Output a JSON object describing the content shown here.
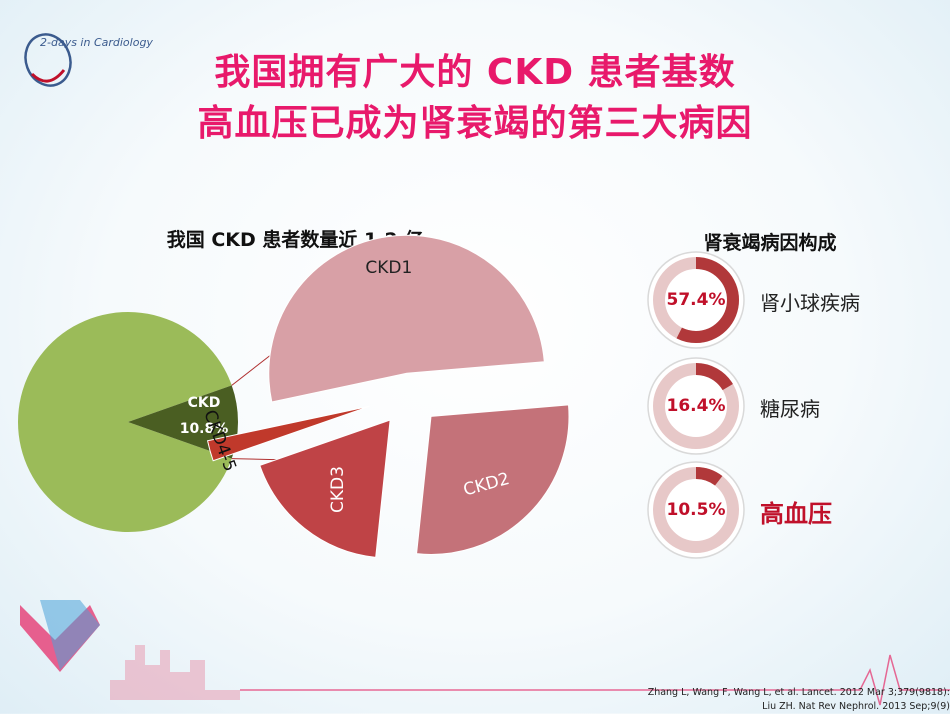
{
  "title_line1": "我国拥有广大的 CKD 患者基数",
  "title_line2": "高血压已成为肾衰竭的第三大病因",
  "logo_text": "2-days in Cardiology",
  "left_chart_title": "我国 CKD 患者数量近 1.2 亿",
  "right_chart_title": "肾衰竭病因构成",
  "colors": {
    "title": "#e8196b",
    "accent": "#c0102a"
  },
  "chart_data": [
    {
      "type": "pie",
      "title": "我国 CKD 患者数量近 1.2 亿",
      "slices": [
        {
          "label": "CKD",
          "value": 10.8,
          "value_label": "10.8%",
          "color": "#4a5e22"
        },
        {
          "label": "",
          "value": 89.2,
          "color": "#9bbb59"
        }
      ]
    },
    {
      "type": "pie",
      "title": "",
      "exploded": true,
      "slices": [
        {
          "label": "CKD1",
          "value": 52,
          "color": "#d8a0a6"
        },
        {
          "label": "CKD2",
          "value": 28,
          "color": "#c47279"
        },
        {
          "label": "CKD3",
          "value": 18,
          "color": "#bf4346"
        },
        {
          "label": "CKD4-5",
          "value": 2,
          "color": "#c0392b"
        }
      ]
    },
    {
      "type": "pie",
      "title": "肾衰竭病因构成",
      "series": [
        {
          "name": "肾小球疾病",
          "value": 57.4,
          "value_label": "57.4%"
        },
        {
          "name": "糖尿病",
          "value": 16.4,
          "value_label": "16.4%"
        },
        {
          "name": "高血压",
          "value": 10.5,
          "value_label": "10.5%",
          "highlight": true
        }
      ]
    }
  ],
  "references": [
    "Zhang L, Wang F, Wang L, et al. Lancet. 2012 Mar 3;379(9818):",
    "Liu ZH. Nat Rev Nephrol. 2013 Sep;9(9)"
  ]
}
